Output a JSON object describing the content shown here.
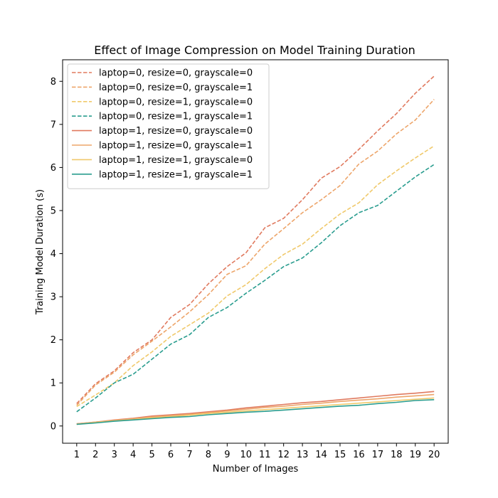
{
  "chart_data": {
    "type": "line",
    "title": "Effect of Image Compression on Model Training Duration",
    "xlabel": "Number of Images",
    "ylabel": "Training Model Duration (s)",
    "x": [
      1,
      2,
      3,
      4,
      5,
      6,
      7,
      8,
      9,
      10,
      11,
      12,
      13,
      14,
      15,
      16,
      17,
      18,
      19,
      20
    ],
    "xlim": [
      0.25,
      20.75
    ],
    "ylim": [
      -0.4,
      8.5
    ],
    "yticks": [
      0,
      1,
      2,
      3,
      4,
      5,
      6,
      7,
      8
    ],
    "grid": false,
    "legend_position": "top-left",
    "series": [
      {
        "name": "laptop=0, resize=0, grayscale=0",
        "color": "#e07a5f",
        "style": "dashed",
        "values": [
          0.52,
          0.98,
          1.28,
          1.7,
          2.0,
          2.52,
          2.82,
          3.3,
          3.7,
          4.02,
          4.6,
          4.82,
          5.25,
          5.75,
          6.02,
          6.42,
          6.85,
          7.25,
          7.72,
          8.12
        ]
      },
      {
        "name": "laptop=0, resize=0, grayscale=1",
        "color": "#eda56a",
        "style": "dashed",
        "values": [
          0.48,
          0.95,
          1.25,
          1.65,
          1.97,
          2.3,
          2.65,
          3.05,
          3.52,
          3.72,
          4.22,
          4.58,
          4.95,
          5.25,
          5.58,
          6.08,
          6.38,
          6.78,
          7.1,
          7.58
        ]
      },
      {
        "name": "laptop=0, resize=1, grayscale=0",
        "color": "#f0c96b",
        "style": "dashed",
        "values": [
          0.45,
          0.72,
          1.0,
          1.4,
          1.72,
          2.08,
          2.35,
          2.62,
          3.02,
          3.28,
          3.65,
          3.98,
          4.22,
          4.58,
          4.92,
          5.18,
          5.6,
          5.92,
          6.22,
          6.5
        ]
      },
      {
        "name": "laptop=0, resize=1, grayscale=1",
        "color": "#2a9d8f",
        "style": "dashed",
        "values": [
          0.33,
          0.65,
          1.0,
          1.2,
          1.55,
          1.9,
          2.12,
          2.52,
          2.75,
          3.08,
          3.38,
          3.7,
          3.9,
          4.25,
          4.65,
          4.95,
          5.12,
          5.45,
          5.78,
          6.07
        ]
      },
      {
        "name": "laptop=1, resize=0, grayscale=0",
        "color": "#e07a5f",
        "style": "solid",
        "values": [
          0.05,
          0.09,
          0.14,
          0.18,
          0.23,
          0.26,
          0.29,
          0.33,
          0.37,
          0.42,
          0.46,
          0.5,
          0.54,
          0.57,
          0.61,
          0.65,
          0.69,
          0.73,
          0.76,
          0.8
        ]
      },
      {
        "name": "laptop=1, resize=0, grayscale=1",
        "color": "#eda56a",
        "style": "solid",
        "values": [
          0.05,
          0.09,
          0.13,
          0.17,
          0.21,
          0.24,
          0.27,
          0.31,
          0.35,
          0.39,
          0.43,
          0.46,
          0.5,
          0.53,
          0.57,
          0.6,
          0.63,
          0.67,
          0.7,
          0.73
        ]
      },
      {
        "name": "laptop=1, resize=1, grayscale=0",
        "color": "#f0c96b",
        "style": "solid",
        "values": [
          0.04,
          0.08,
          0.12,
          0.15,
          0.19,
          0.22,
          0.25,
          0.29,
          0.32,
          0.35,
          0.38,
          0.41,
          0.44,
          0.47,
          0.5,
          0.53,
          0.56,
          0.59,
          0.62,
          0.65
        ]
      },
      {
        "name": "laptop=1, resize=1, grayscale=1",
        "color": "#2a9d8f",
        "style": "solid",
        "values": [
          0.04,
          0.07,
          0.11,
          0.14,
          0.17,
          0.2,
          0.22,
          0.26,
          0.29,
          0.32,
          0.34,
          0.37,
          0.4,
          0.43,
          0.46,
          0.48,
          0.52,
          0.55,
          0.59,
          0.61
        ]
      }
    ]
  }
}
